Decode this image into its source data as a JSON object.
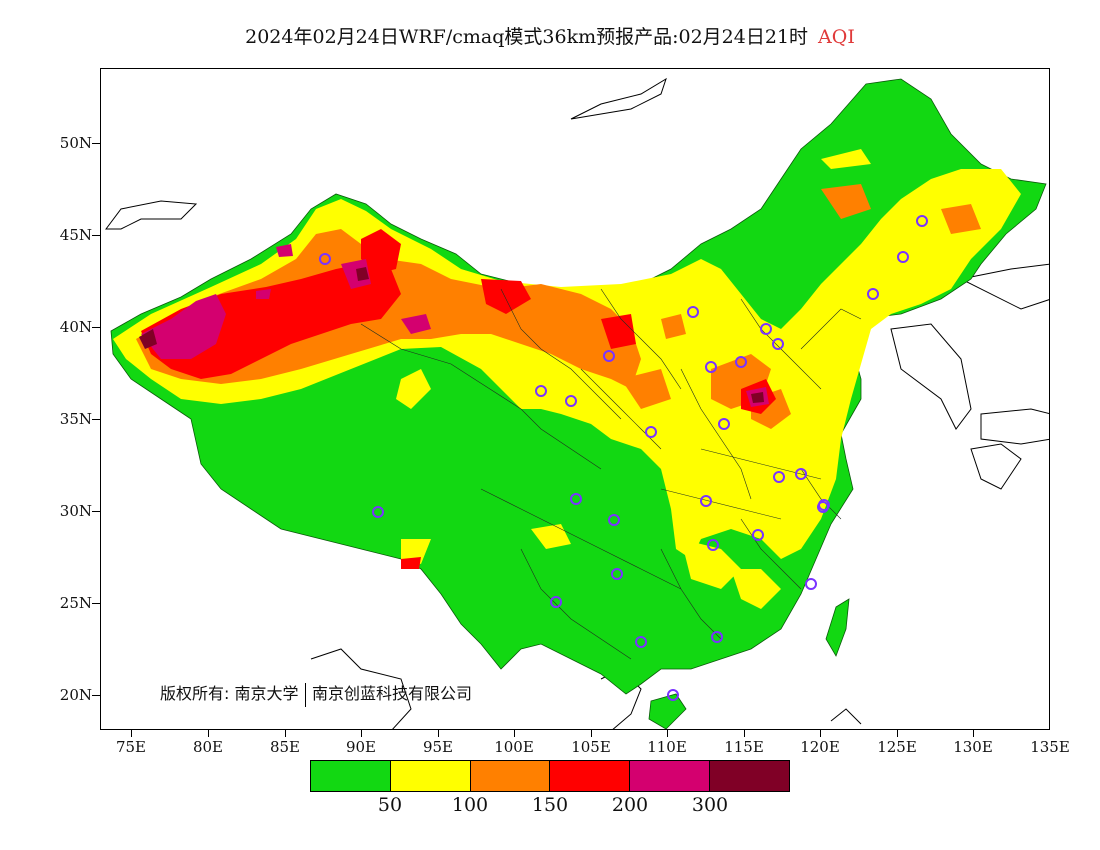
{
  "title": {
    "main": "2024年02月24日WRF/cmaq模式36km预报产品:02月24日21时",
    "variable": "AQI"
  },
  "axes": {
    "lat_labels": [
      "50N",
      "45N",
      "40N",
      "35N",
      "30N",
      "25N",
      "20N"
    ],
    "lon_labels": [
      "75E",
      "80E",
      "85E",
      "90E",
      "95E",
      "100E",
      "105E",
      "110E",
      "115E",
      "120E",
      "125E",
      "130E",
      "135E"
    ],
    "lon_range": [
      73,
      135
    ],
    "lat_range": [
      18,
      54
    ]
  },
  "copyright": {
    "prefix": "版权所有:",
    "org1": "南京大学",
    "org2": "南京创蓝科技有限公司"
  },
  "legend": {
    "colors": [
      "#12d812",
      "#ffff00",
      "#ff8000",
      "#ff0000",
      "#d4006f",
      "#800026"
    ],
    "labels": [
      "50",
      "100",
      "150",
      "200",
      "300"
    ]
  },
  "colors": {
    "good": "#12d812",
    "moderate": "#ffff00",
    "usg": "#ff8000",
    "unhealthy": "#ff0000",
    "very_unhealthy": "#d4006f",
    "hazardous": "#800026",
    "station_marker": "#7a33ff"
  }
}
